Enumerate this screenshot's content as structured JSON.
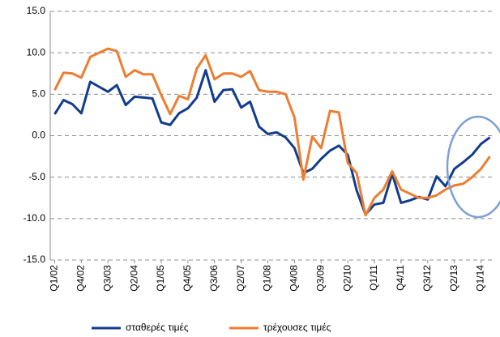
{
  "chart_data": {
    "type": "line",
    "categories": [
      "Q1/02",
      null,
      null,
      "Q4/02",
      null,
      null,
      "Q3/03",
      null,
      null,
      "Q2/04",
      null,
      null,
      "Q1/05",
      null,
      null,
      "Q4/05",
      null,
      null,
      "Q3/06",
      null,
      null,
      "Q2/07",
      null,
      null,
      "Q1/08",
      null,
      null,
      "Q4/08",
      null,
      null,
      "Q3/09",
      null,
      null,
      "Q2/10",
      null,
      null,
      "Q1/11",
      null,
      null,
      "Q4/11",
      null,
      null,
      "Q3/12",
      null,
      null,
      "Q2/13",
      null,
      null,
      "Q1/14",
      null
    ],
    "series": [
      {
        "name": "σταθερές τιμές",
        "color": "#123c8c",
        "values": [
          2.6,
          4.3,
          3.8,
          2.7,
          6.5,
          5.9,
          5.3,
          6.1,
          3.7,
          4.7,
          4.6,
          4.5,
          1.6,
          1.3,
          2.7,
          3.3,
          4.6,
          7.9,
          4.1,
          5.5,
          5.6,
          3.4,
          4.1,
          1.1,
          0.2,
          0.4,
          -0.2,
          -1.5,
          -4.5,
          -4.0,
          -2.8,
          -1.8,
          -1.2,
          -2.3,
          -6.6,
          -9.5,
          -8.3,
          -8.1,
          -4.6,
          -8.1,
          -7.8,
          -7.4,
          -7.7,
          -4.9,
          -6.1,
          -4.0,
          -3.2,
          -2.3,
          -1.0,
          -0.2
        ]
      },
      {
        "name": "τρέχουσες τιμές",
        "color": "#ed7d31",
        "values": [
          5.5,
          7.6,
          7.5,
          7.0,
          9.5,
          10.0,
          10.5,
          10.2,
          7.1,
          7.9,
          7.4,
          7.4,
          4.9,
          2.6,
          4.8,
          4.4,
          8.1,
          9.7,
          6.8,
          7.5,
          7.5,
          7.1,
          7.8,
          5.5,
          5.3,
          5.3,
          5.0,
          2.2,
          -5.3,
          -0.1,
          -1.5,
          3.0,
          2.8,
          -3.3,
          -4.5,
          -9.6,
          -7.5,
          -6.5,
          -4.3,
          -6.5,
          -7.0,
          -7.5,
          -7.5,
          -7.2,
          -6.5,
          -6.0,
          -5.8,
          -5.0,
          -4.0,
          -2.5
        ]
      }
    ],
    "ylim": [
      -15,
      15
    ],
    "yticks": [
      {
        "value": -15,
        "label": "-15.0"
      },
      {
        "value": -10,
        "label": "-10.0"
      },
      {
        "value": -5,
        "label": "-5.0"
      },
      {
        "value": 0,
        "label": "0.0"
      },
      {
        "value": 5,
        "label": "5.0"
      },
      {
        "value": 10,
        "label": "10.0"
      },
      {
        "value": 15,
        "label": "15.0"
      }
    ],
    "grid": true,
    "legend": "bottom"
  }
}
